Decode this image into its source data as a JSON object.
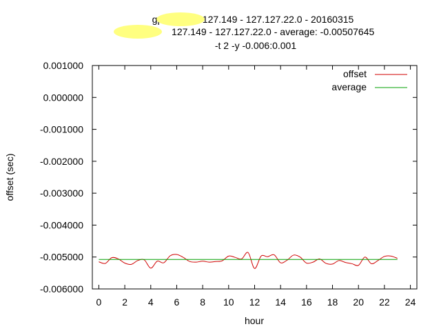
{
  "chart_data": {
    "type": "line",
    "title_lines": [
      "gps0:          127.149 - 127.127.22.0 - 20160315",
      "               127.149 - 127.127.22.0 - average: -0.00507645",
      "-t 2 -y -0.006:0.001"
    ],
    "xlabel": "hour",
    "ylabel": "offset (sec)",
    "xlim": [
      -0.5,
      24.5
    ],
    "ylim": [
      -0.006,
      0.001
    ],
    "x_ticks": [
      0,
      2,
      4,
      6,
      8,
      10,
      12,
      14,
      16,
      18,
      20,
      22,
      24
    ],
    "x_tick_labels": [
      "0",
      "2",
      "4",
      "6",
      "8",
      "10",
      "12",
      "14",
      "16",
      "18",
      "20",
      "22",
      "24"
    ],
    "y_ticks": [
      0.001,
      0.0,
      -0.001,
      -0.002,
      -0.003,
      -0.004,
      -0.005,
      -0.006
    ],
    "y_tick_labels": [
      "0.001000",
      "0.000000",
      "-0.001000",
      "-0.002000",
      "-0.003000",
      "-0.004000",
      "-0.005000",
      "-0.006000"
    ],
    "grid": false,
    "legend_position": "top-right",
    "series": [
      {
        "name": "offset",
        "color": "#d00000",
        "x": [
          0,
          0.5,
          1,
          1.5,
          2,
          2.5,
          3,
          3.5,
          4,
          4.5,
          5,
          5.5,
          6,
          6.5,
          7,
          7.5,
          8,
          8.5,
          9,
          9.5,
          10,
          10.5,
          11,
          11.5,
          12,
          12.5,
          13,
          13.5,
          14,
          14.5,
          15,
          15.5,
          16,
          16.5,
          17,
          17.5,
          18,
          18.5,
          19,
          19.5,
          20,
          20.5,
          21,
          21.5,
          22,
          22.5,
          23
        ],
        "values": [
          -0.00515,
          -0.0052,
          -0.00502,
          -0.00506,
          -0.00519,
          -0.00523,
          -0.00511,
          -0.00509,
          -0.00535,
          -0.00513,
          -0.00518,
          -0.00496,
          -0.00492,
          -0.00501,
          -0.00514,
          -0.00516,
          -0.00513,
          -0.00516,
          -0.00514,
          -0.00512,
          -0.00497,
          -0.00501,
          -0.00506,
          -0.00486,
          -0.00536,
          -0.00497,
          -0.00499,
          -0.00493,
          -0.00518,
          -0.0051,
          -0.00494,
          -0.005,
          -0.00519,
          -0.00516,
          -0.00506,
          -0.0052,
          -0.00522,
          -0.00511,
          -0.00517,
          -0.00521,
          -0.00526,
          -0.005,
          -0.00521,
          -0.00511,
          -0.00498,
          -0.00497,
          -0.00504
        ]
      },
      {
        "name": "average",
        "color": "#00a000",
        "x": [
          0,
          23
        ],
        "values": [
          -0.00507645,
          -0.00507645
        ]
      }
    ]
  }
}
